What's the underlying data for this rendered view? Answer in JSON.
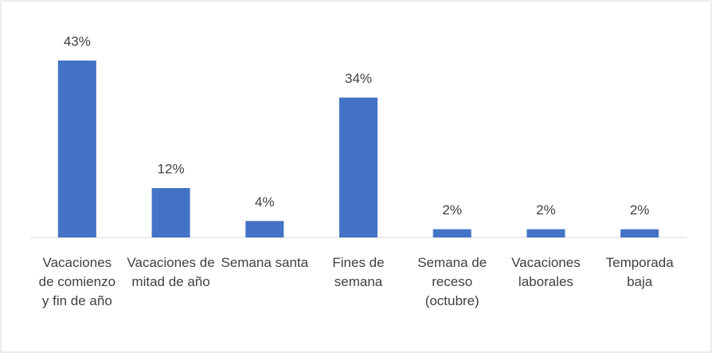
{
  "chart_data": {
    "type": "bar",
    "categories": [
      "Vacaciones de comienzo y fin de año",
      "Vacaciones de mitad de año",
      "Semana santa",
      "Fines de semana",
      "Semana de receso (octubre)",
      "Vacaciones laborales",
      "Temporada baja"
    ],
    "values": [
      43,
      12,
      4,
      34,
      2,
      2,
      2
    ],
    "value_labels": [
      "43%",
      "12%",
      "4%",
      "34%",
      "2%",
      "2%",
      "2%"
    ],
    "color": "#4472c4"
  }
}
